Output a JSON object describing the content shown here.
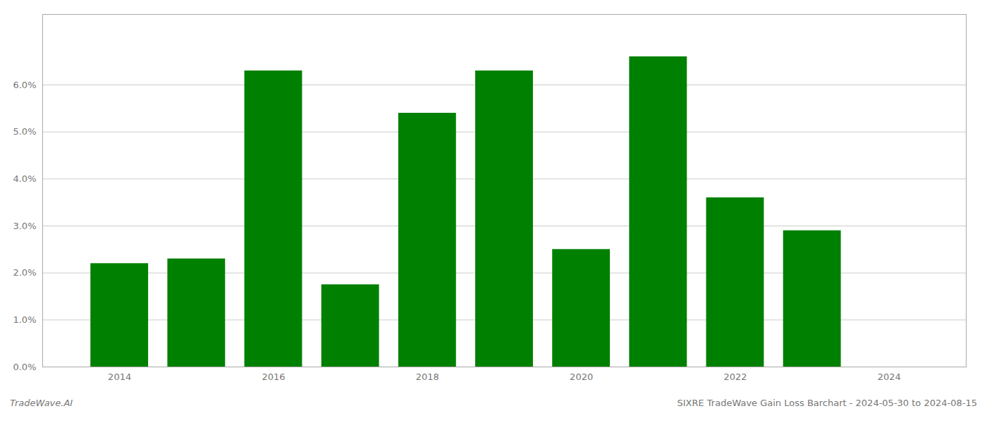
{
  "chart_data": {
    "type": "bar",
    "title": "SIXRE TradeWave Gain Loss Barchart - 2024-05-30 to 2024-08-15",
    "annotations": [
      "TradeWave.AI"
    ],
    "x": [
      2014,
      2015,
      2016,
      2017,
      2018,
      2019,
      2020,
      2021,
      2022,
      2023
    ],
    "values": [
      0.022,
      0.023,
      0.063,
      0.0175,
      0.054,
      0.063,
      0.025,
      0.066,
      0.036,
      0.029
    ],
    "color": "#008000",
    "xlim": [
      2013.0,
      2025.0
    ],
    "xticks": [
      2014,
      2016,
      2018,
      2020,
      2022,
      2024
    ],
    "ylim": [
      0,
      0.075
    ],
    "yticks": [
      {
        "value": 0.0,
        "label": "0.0%"
      },
      {
        "value": 0.01,
        "label": "1.0%"
      },
      {
        "value": 0.02,
        "label": "2.0%"
      },
      {
        "value": 0.03,
        "label": "3.0%"
      },
      {
        "value": 0.04,
        "label": "4.0%"
      },
      {
        "value": 0.05,
        "label": "5.0%"
      },
      {
        "value": 0.06,
        "label": "6.0%"
      }
    ],
    "grid": true
  }
}
